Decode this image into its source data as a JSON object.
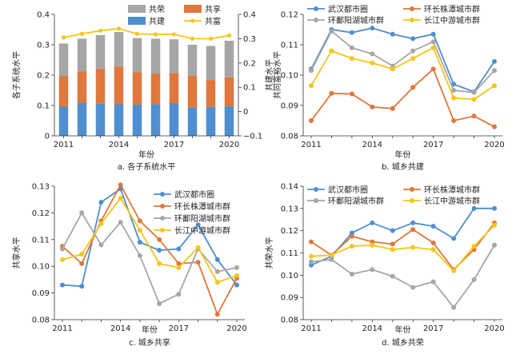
{
  "chart_data": [
    {
      "type": "bar",
      "caption": "a. 各子系统水平",
      "x": [
        2011,
        2012,
        2013,
        2014,
        2015,
        2016,
        2017,
        2018,
        2019,
        2020
      ],
      "xticks": [
        "2011",
        "2014",
        "2017",
        "2020"
      ],
      "xlabel": "年份",
      "ylabel": "各子系统水平",
      "ylabel2": "共同富裕水平",
      "ylim": [
        0,
        0.4
      ],
      "yticks": [
        "0",
        "0.1",
        "0.2",
        "0.3",
        "0.4"
      ],
      "ylim2": [
        -0.1,
        0.4
      ],
      "yticks2": [
        "−0.1",
        "0",
        "0.1",
        "0.2",
        "0.3",
        "0.4"
      ],
      "legend": {
        "position": "top",
        "labels": [
          "共荣",
          "共享",
          "共建",
          "共富"
        ]
      },
      "series": [
        {
          "name": "共建",
          "kind": "stack",
          "color": "#4f8fcf",
          "values": [
            0.096,
            0.109,
            0.106,
            0.104,
            0.103,
            0.104,
            0.108,
            0.093,
            0.095,
            0.097
          ]
        },
        {
          "name": "共享",
          "kind": "stack",
          "color": "#e0773c",
          "values": [
            0.101,
            0.103,
            0.114,
            0.124,
            0.107,
            0.101,
            0.099,
            0.104,
            0.089,
            0.096
          ]
        },
        {
          "name": "共荣",
          "kind": "stack",
          "color": "#a6a6a6",
          "values": [
            0.107,
            0.108,
            0.112,
            0.114,
            0.112,
            0.115,
            0.111,
            0.103,
            0.112,
            0.12
          ]
        },
        {
          "name": "共富",
          "kind": "line",
          "axis": "right",
          "color": "#f5c518",
          "values": [
            0.305,
            0.32,
            0.333,
            0.341,
            0.32,
            0.318,
            0.318,
            0.3,
            0.3,
            0.313
          ]
        }
      ]
    },
    {
      "type": "line",
      "caption": "b. 城乡共建",
      "x": [
        2011,
        2012,
        2013,
        2014,
        2015,
        2016,
        2017,
        2018,
        2019,
        2020
      ],
      "xticks": [
        "2011",
        "2014",
        "2017",
        "2020"
      ],
      "xlabel": "年份",
      "ylabel": "共建水平",
      "ylim": [
        0.08,
        0.12
      ],
      "yticks": [
        "0.08",
        "0.09",
        "0.10",
        "0.11",
        "0.12"
      ],
      "legend": {
        "position": "top",
        "labels": [
          "武汉都市圈",
          "环长株潭城市群",
          "环鄱阳湖城市群",
          "长江中游城市群"
        ]
      },
      "series": [
        {
          "name": "武汉都市圈",
          "color": "#4f8fcf",
          "values": [
            0.102,
            0.115,
            0.114,
            0.1155,
            0.1135,
            0.112,
            0.1135,
            0.097,
            0.0945,
            0.1045
          ]
        },
        {
          "name": "环长株潭城市群",
          "color": "#e0773c",
          "values": [
            0.085,
            0.094,
            0.0938,
            0.0895,
            0.089,
            0.096,
            0.102,
            0.085,
            0.0865,
            0.083
          ]
        },
        {
          "name": "环鄱阳湖城市群",
          "color": "#a6a6a6",
          "values": [
            0.1015,
            0.1145,
            0.109,
            0.107,
            0.103,
            0.108,
            0.111,
            0.095,
            0.0943,
            0.1015
          ]
        },
        {
          "name": "长江中游城市群",
          "color": "#f5c518",
          "values": [
            0.0965,
            0.108,
            0.1055,
            0.104,
            0.102,
            0.1055,
            0.109,
            0.0925,
            0.092,
            0.0965
          ]
        }
      ]
    },
    {
      "type": "line",
      "caption": "c. 城乡共享",
      "x": [
        2011,
        2012,
        2013,
        2014,
        2015,
        2016,
        2017,
        2018,
        2019,
        2020
      ],
      "xticks": [
        "2011",
        "2014",
        "2017",
        "2020"
      ],
      "xlabel": "年份",
      "ylabel": "共享水平",
      "ylim": [
        0.08,
        0.13
      ],
      "yticks": [
        "0.08",
        "0.09",
        "0.10",
        "0.11",
        "0.12",
        "0.13"
      ],
      "legend": {
        "position": "right",
        "labels": [
          "武汉都市圈",
          "环长株潭城市群",
          "环鄱阳湖城市群",
          "长江中游城市群"
        ]
      },
      "series": [
        {
          "name": "武汉都市圈",
          "color": "#4f8fcf",
          "values": [
            0.093,
            0.0925,
            0.124,
            0.129,
            0.109,
            0.106,
            0.1065,
            0.1155,
            0.1025,
            0.093
          ]
        },
        {
          "name": "环长株潭城市群",
          "color": "#e0773c",
          "values": [
            0.1075,
            0.101,
            0.117,
            0.1305,
            0.117,
            0.11,
            0.101,
            0.1015,
            0.082,
            0.0955
          ]
        },
        {
          "name": "环鄱阳湖城市群",
          "color": "#a6a6a6",
          "values": [
            0.1065,
            0.12,
            0.108,
            0.1165,
            0.104,
            0.086,
            0.0895,
            0.1065,
            0.098,
            0.0995
          ]
        },
        {
          "name": "长江中游城市群",
          "color": "#f5c518",
          "values": [
            0.1025,
            0.1045,
            0.116,
            0.1255,
            0.1135,
            0.101,
            0.0995,
            0.107,
            0.094,
            0.0965
          ]
        }
      ]
    },
    {
      "type": "line",
      "caption": "d. 城乡共荣",
      "x": [
        2011,
        2012,
        2013,
        2014,
        2015,
        2016,
        2017,
        2018,
        2019,
        2020
      ],
      "xticks": [
        "2011",
        "2014",
        "2017",
        "2020"
      ],
      "xlabel": "年份",
      "ylabel": "共荣水平",
      "ylim": [
        0.08,
        0.14
      ],
      "yticks": [
        "0.08",
        "0.09",
        "0.10",
        "0.11",
        "0.12",
        "0.13",
        "0.14"
      ],
      "legend": {
        "position": "top",
        "labels": [
          "武汉都市圈",
          "环长株潭城市群",
          "环鄱阳湖城市群",
          "长江中游城市群"
        ]
      },
      "series": [
        {
          "name": "武汉都市圈",
          "color": "#4f8fcf",
          "values": [
            0.1045,
            0.1085,
            0.119,
            0.1235,
            0.12,
            0.1235,
            0.122,
            0.1165,
            0.13,
            0.13
          ]
        },
        {
          "name": "环长株潭城市群",
          "color": "#e0773c",
          "values": [
            0.115,
            0.109,
            0.1175,
            0.115,
            0.114,
            0.1205,
            0.1145,
            0.1025,
            0.1115,
            0.1235
          ]
        },
        {
          "name": "环鄱阳湖城市群",
          "color": "#a6a6a6",
          "values": [
            0.106,
            0.107,
            0.1005,
            0.1025,
            0.0995,
            0.0945,
            0.097,
            0.0855,
            0.098,
            0.1135
          ]
        },
        {
          "name": "长江中游城市群",
          "color": "#f5c518",
          "values": [
            0.1085,
            0.109,
            0.113,
            0.1135,
            0.1115,
            0.1125,
            0.1115,
            0.102,
            0.113,
            0.1225
          ]
        }
      ]
    }
  ]
}
